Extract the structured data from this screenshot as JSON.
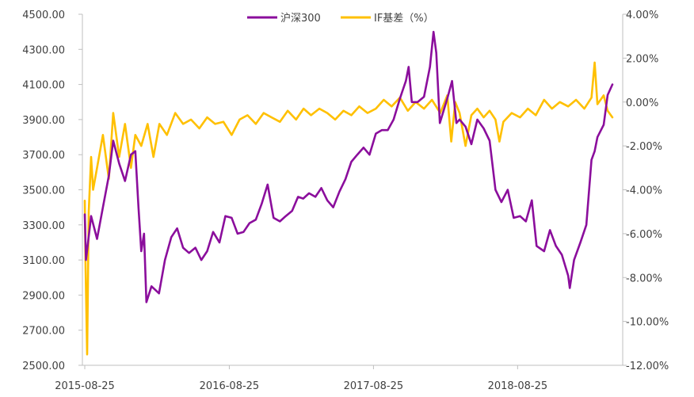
{
  "chart_data": {
    "type": "line",
    "legend": {
      "placement": "top-center"
    },
    "grid": false,
    "x": {
      "tick_labels": [
        "2015-08-25",
        "2016-08-25",
        "2017-08-25",
        "2018-08-25"
      ]
    },
    "y_left": {
      "range": [
        2500,
        4500
      ],
      "tick_labels": [
        "4500.00",
        "4300.00",
        "4100.00",
        "3900.00",
        "3700.00",
        "3500.00",
        "3300.00",
        "3100.00",
        "2900.00",
        "2700.00",
        "2500.00"
      ]
    },
    "y_right": {
      "range": [
        -12,
        4
      ],
      "unit": "%",
      "tick_labels": [
        "4.00%",
        "2.00%",
        "0.00%",
        "-2.00%",
        "-4.00%",
        "-6.00%",
        "-8.00%",
        "-10.00%",
        "-12.00%"
      ]
    },
    "date_range": [
      "2015-08-25",
      "2019-04-22"
    ],
    "series": [
      {
        "name": "沪深300",
        "axis": "left",
        "color": "#8B0E9C",
        "points": [
          [
            "2015-08-25",
            3360
          ],
          [
            "2015-08-28",
            3100
          ],
          [
            "2015-09-10",
            3350
          ],
          [
            "2015-09-25",
            3220
          ],
          [
            "2015-10-10",
            3400
          ],
          [
            "2015-10-25",
            3580
          ],
          [
            "2015-11-05",
            3780
          ],
          [
            "2015-11-20",
            3650
          ],
          [
            "2015-12-05",
            3550
          ],
          [
            "2015-12-20",
            3700
          ],
          [
            "2015-12-31",
            3720
          ],
          [
            "2016-01-08",
            3400
          ],
          [
            "2016-01-15",
            3150
          ],
          [
            "2016-01-22",
            3250
          ],
          [
            "2016-01-28",
            2860
          ],
          [
            "2016-02-10",
            2950
          ],
          [
            "2016-02-29",
            2910
          ],
          [
            "2016-03-15",
            3100
          ],
          [
            "2016-03-31",
            3230
          ],
          [
            "2016-04-15",
            3280
          ],
          [
            "2016-04-30",
            3170
          ],
          [
            "2016-05-15",
            3140
          ],
          [
            "2016-05-31",
            3170
          ],
          [
            "2016-06-15",
            3100
          ],
          [
            "2016-06-30",
            3150
          ],
          [
            "2016-07-15",
            3260
          ],
          [
            "2016-07-31",
            3200
          ],
          [
            "2016-08-15",
            3350
          ],
          [
            "2016-08-31",
            3340
          ],
          [
            "2016-09-15",
            3250
          ],
          [
            "2016-09-30",
            3260
          ],
          [
            "2016-10-15",
            3310
          ],
          [
            "2016-10-31",
            3330
          ],
          [
            "2016-11-15",
            3420
          ],
          [
            "2016-11-30",
            3530
          ],
          [
            "2016-12-15",
            3340
          ],
          [
            "2016-12-31",
            3320
          ],
          [
            "2017-01-15",
            3350
          ],
          [
            "2017-01-31",
            3380
          ],
          [
            "2017-02-15",
            3460
          ],
          [
            "2017-02-28",
            3450
          ],
          [
            "2017-03-15",
            3480
          ],
          [
            "2017-03-31",
            3460
          ],
          [
            "2017-04-15",
            3510
          ],
          [
            "2017-04-30",
            3440
          ],
          [
            "2017-05-15",
            3400
          ],
          [
            "2017-05-31",
            3490
          ],
          [
            "2017-06-15",
            3560
          ],
          [
            "2017-06-30",
            3660
          ],
          [
            "2017-07-15",
            3700
          ],
          [
            "2017-07-31",
            3740
          ],
          [
            "2017-08-15",
            3700
          ],
          [
            "2017-08-31",
            3820
          ],
          [
            "2017-09-15",
            3840
          ],
          [
            "2017-09-30",
            3840
          ],
          [
            "2017-10-15",
            3900
          ],
          [
            "2017-10-31",
            4020
          ],
          [
            "2017-11-15",
            4120
          ],
          [
            "2017-11-22",
            4200
          ],
          [
            "2017-11-30",
            4000
          ],
          [
            "2017-12-15",
            4000
          ],
          [
            "2017-12-31",
            4030
          ],
          [
            "2018-01-15",
            4200
          ],
          [
            "2018-01-24",
            4400
          ],
          [
            "2018-01-31",
            4280
          ],
          [
            "2018-02-09",
            3880
          ],
          [
            "2018-02-28",
            4020
          ],
          [
            "2018-03-12",
            4120
          ],
          [
            "2018-03-23",
            3880
          ],
          [
            "2018-03-31",
            3900
          ],
          [
            "2018-04-15",
            3860
          ],
          [
            "2018-04-30",
            3760
          ],
          [
            "2018-05-15",
            3900
          ],
          [
            "2018-05-31",
            3850
          ],
          [
            "2018-06-15",
            3780
          ],
          [
            "2018-06-30",
            3500
          ],
          [
            "2018-07-15",
            3430
          ],
          [
            "2018-07-31",
            3500
          ],
          [
            "2018-08-15",
            3340
          ],
          [
            "2018-08-31",
            3350
          ],
          [
            "2018-09-15",
            3320
          ],
          [
            "2018-09-30",
            3440
          ],
          [
            "2018-10-12",
            3180
          ],
          [
            "2018-10-31",
            3150
          ],
          [
            "2018-11-15",
            3270
          ],
          [
            "2018-11-30",
            3180
          ],
          [
            "2018-12-15",
            3130
          ],
          [
            "2018-12-31",
            3010
          ],
          [
            "2019-01-04",
            2940
          ],
          [
            "2019-01-15",
            3100
          ],
          [
            "2019-01-31",
            3200
          ],
          [
            "2019-02-15",
            3300
          ],
          [
            "2019-02-28",
            3670
          ],
          [
            "2019-03-08",
            3720
          ],
          [
            "2019-03-15",
            3800
          ],
          [
            "2019-03-31",
            3870
          ],
          [
            "2019-04-10",
            4040
          ],
          [
            "2019-04-22",
            4100
          ]
        ]
      },
      {
        "name": "IF基差（%）",
        "axis": "right",
        "color": "#FFC000",
        "points": [
          [
            "2015-08-25",
            -4.5
          ],
          [
            "2015-08-27",
            -7.5
          ],
          [
            "2015-08-31",
            -11.5
          ],
          [
            "2015-09-04",
            -5.0
          ],
          [
            "2015-09-10",
            -2.5
          ],
          [
            "2015-09-15",
            -4.0
          ],
          [
            "2015-09-25",
            -3.0
          ],
          [
            "2015-10-10",
            -1.5
          ],
          [
            "2015-10-25",
            -3.5
          ],
          [
            "2015-11-05",
            -0.5
          ],
          [
            "2015-11-20",
            -2.5
          ],
          [
            "2015-12-05",
            -1.0
          ],
          [
            "2015-12-20",
            -3.0
          ],
          [
            "2015-12-31",
            -1.5
          ],
          [
            "2016-01-15",
            -2.0
          ],
          [
            "2016-01-31",
            -1.0
          ],
          [
            "2016-02-15",
            -2.5
          ],
          [
            "2016-03-01",
            -1.0
          ],
          [
            "2016-03-20",
            -1.5
          ],
          [
            "2016-04-10",
            -0.5
          ],
          [
            "2016-04-30",
            -1.0
          ],
          [
            "2016-05-20",
            -0.8
          ],
          [
            "2016-06-10",
            -1.2
          ],
          [
            "2016-06-30",
            -0.7
          ],
          [
            "2016-07-20",
            -1.0
          ],
          [
            "2016-08-10",
            -0.9
          ],
          [
            "2016-08-31",
            -1.5
          ],
          [
            "2016-09-20",
            -0.8
          ],
          [
            "2016-10-10",
            -0.6
          ],
          [
            "2016-10-31",
            -1.0
          ],
          [
            "2016-11-20",
            -0.5
          ],
          [
            "2016-12-10",
            -0.7
          ],
          [
            "2016-12-31",
            -0.9
          ],
          [
            "2017-01-20",
            -0.4
          ],
          [
            "2017-02-10",
            -0.8
          ],
          [
            "2017-03-01",
            -0.3
          ],
          [
            "2017-03-20",
            -0.6
          ],
          [
            "2017-04-10",
            -0.3
          ],
          [
            "2017-04-30",
            -0.5
          ],
          [
            "2017-05-20",
            -0.8
          ],
          [
            "2017-06-10",
            -0.4
          ],
          [
            "2017-06-30",
            -0.6
          ],
          [
            "2017-07-20",
            -0.2
          ],
          [
            "2017-08-10",
            -0.5
          ],
          [
            "2017-08-31",
            -0.3
          ],
          [
            "2017-09-20",
            0.1
          ],
          [
            "2017-10-10",
            -0.2
          ],
          [
            "2017-10-31",
            0.2
          ],
          [
            "2017-11-20",
            -0.4
          ],
          [
            "2017-12-10",
            0.0
          ],
          [
            "2017-12-31",
            -0.3
          ],
          [
            "2018-01-20",
            0.1
          ],
          [
            "2018-02-10",
            -0.5
          ],
          [
            "2018-02-28",
            0.3
          ],
          [
            "2018-03-10",
            -1.8
          ],
          [
            "2018-03-20",
            0.0
          ],
          [
            "2018-03-31",
            -0.5
          ],
          [
            "2018-04-15",
            -2.0
          ],
          [
            "2018-04-30",
            -0.6
          ],
          [
            "2018-05-15",
            -0.3
          ],
          [
            "2018-05-31",
            -0.7
          ],
          [
            "2018-06-15",
            -0.4
          ],
          [
            "2018-06-30",
            -0.8
          ],
          [
            "2018-07-10",
            -1.8
          ],
          [
            "2018-07-20",
            -0.9
          ],
          [
            "2018-08-10",
            -0.5
          ],
          [
            "2018-08-31",
            -0.7
          ],
          [
            "2018-09-20",
            -0.3
          ],
          [
            "2018-10-10",
            -0.6
          ],
          [
            "2018-10-31",
            0.1
          ],
          [
            "2018-11-20",
            -0.3
          ],
          [
            "2018-12-10",
            0.0
          ],
          [
            "2018-12-31",
            -0.2
          ],
          [
            "2019-01-20",
            0.1
          ],
          [
            "2019-02-10",
            -0.3
          ],
          [
            "2019-02-28",
            0.2
          ],
          [
            "2019-03-08",
            1.8
          ],
          [
            "2019-03-15",
            -0.1
          ],
          [
            "2019-03-31",
            0.3
          ],
          [
            "2019-04-10",
            -0.4
          ],
          [
            "2019-04-22",
            -0.7
          ]
        ]
      }
    ]
  }
}
